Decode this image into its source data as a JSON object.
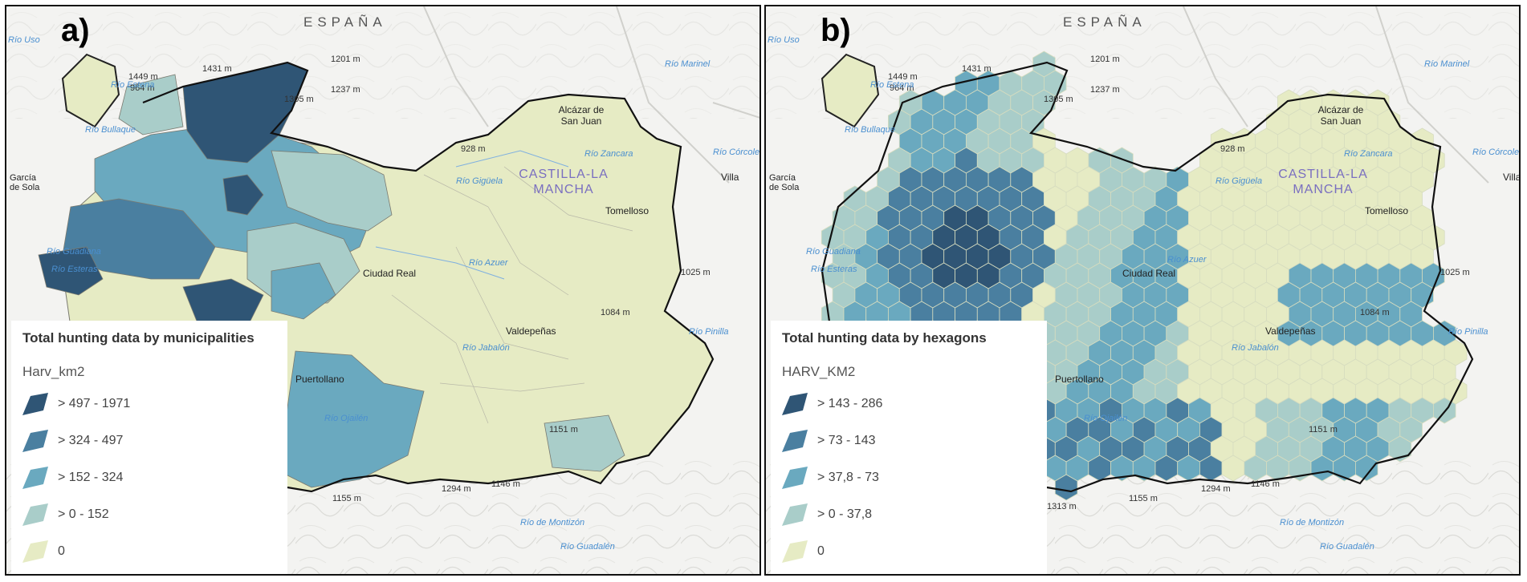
{
  "panels": {
    "a": {
      "letter": "a)",
      "country": "ESPAÑA",
      "legend_title": "Total hunting data by municipalities",
      "legend_field": "Harv_km2",
      "classes": [
        {
          "label": "> 497 - 1971",
          "color": "#2f5575"
        },
        {
          "label": "> 324 - 497",
          "color": "#4a7fa0"
        },
        {
          "label": "> 152 - 324",
          "color": "#6aa9bf"
        },
        {
          "label": "> 0 - 152",
          "color": "#a9cdc9"
        },
        {
          "label": "0",
          "color": "#e6ebc4"
        }
      ]
    },
    "b": {
      "letter": "b)",
      "country": "ESPAÑA",
      "legend_title": "Total hunting data by hexagons",
      "legend_field": "HARV_KM2",
      "classes": [
        {
          "label": "> 143 - 286",
          "color": "#2f5575"
        },
        {
          "label": "> 73 - 143",
          "color": "#4a7fa0"
        },
        {
          "label": "> 37,8 - 73",
          "color": "#6aa9bf"
        },
        {
          "label": "> 0 - 37,8",
          "color": "#a9cdc9"
        },
        {
          "label": "0",
          "color": "#e6ebc4"
        }
      ]
    }
  },
  "map_labels": {
    "region": "CASTILLA-LA MANCHA",
    "city_alcazar": "Alcázar de San Juan",
    "city_tomelloso": "Tomelloso",
    "city_ciudad_real": "Ciudad Real",
    "city_valdepenas": "Valdepeñas",
    "city_puertollano": "Puertollano",
    "city_villa": "Villa",
    "place_garcia_sola": "García de Sola",
    "elev_1201": "1201 m",
    "elev_1431": "1431 m",
    "elev_1449": "1449 m",
    "elev_1237": "1237 m",
    "elev_964": "964 m",
    "elev_1305": "1305 m",
    "elev_928": "928 m",
    "elev_1025": "1025 m",
    "elev_1084": "1084 m",
    "elev_1151": "1151 m",
    "elev_1155": "1155 m",
    "elev_1294": "1294 m",
    "elev_1146": "1146 m",
    "elev_1313": "1313 m",
    "river_zancara": "Río Zancara",
    "river_giguela": "Río Gigüela",
    "river_azuer": "Río Azuer",
    "river_jabalon": "Río Jabalón",
    "river_bullaque": "Río Bullaque",
    "river_esteras": "Río Esteras",
    "river_estena": "Río Estena",
    "river_ojailen": "Río Ojailén",
    "river_pinilla": "Río Pinilla",
    "river_montizon": "Río de Montizón",
    "river_guadalen": "Río Guadalén",
    "river_uso": "Río Uso",
    "river_marinel": "Río Marinel",
    "river_corcoles": "Río Córcoles",
    "river_guadiana": "Río Guadiana"
  }
}
